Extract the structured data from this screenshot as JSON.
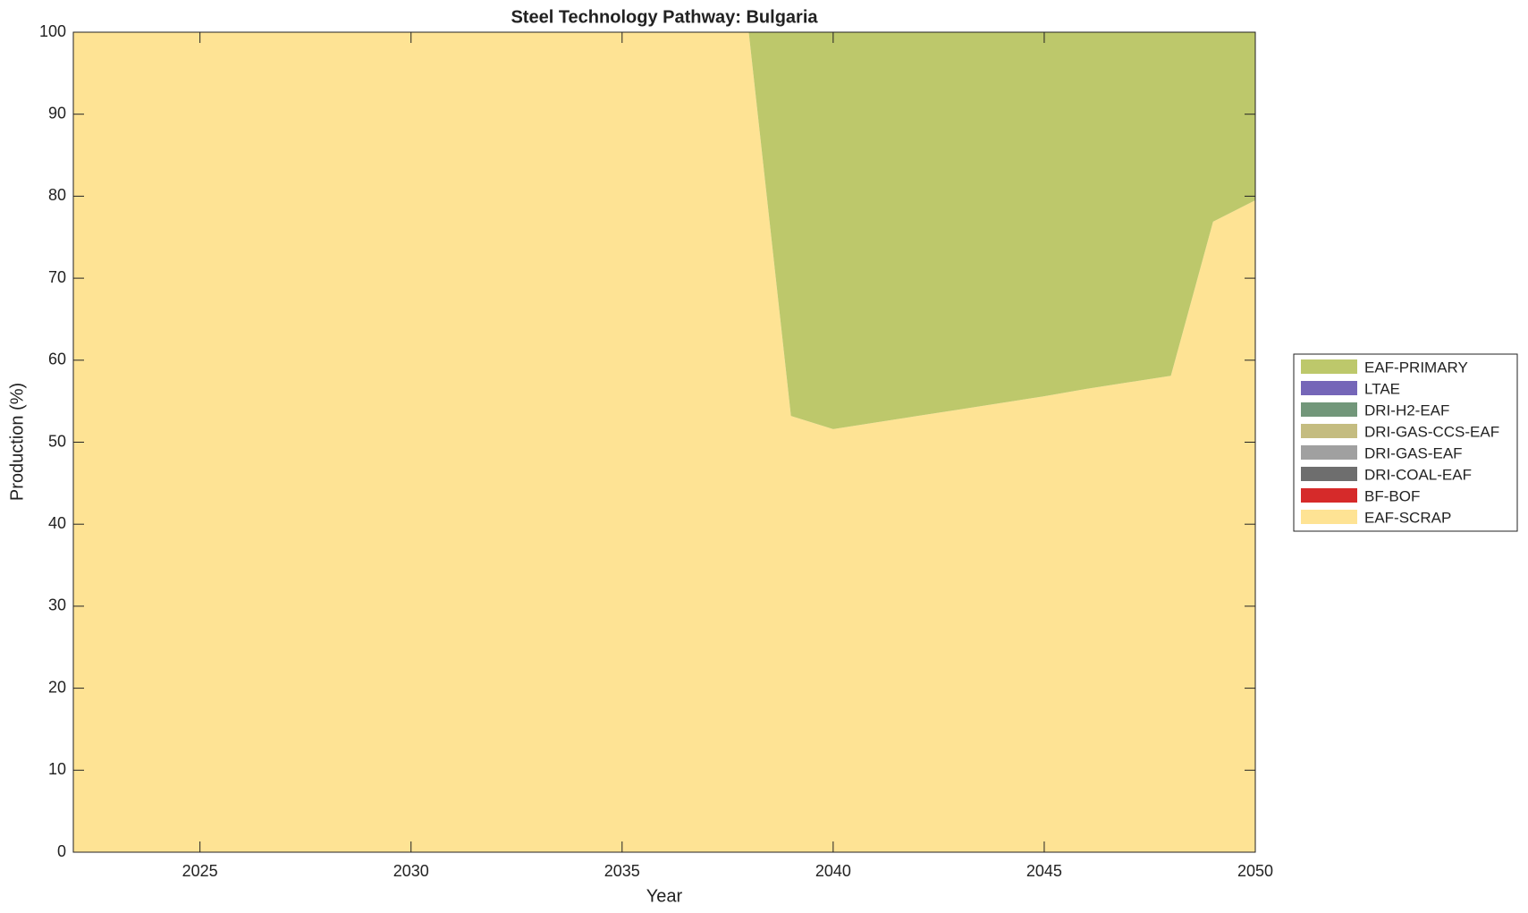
{
  "chart_data": {
    "type": "stacked-area",
    "title": "Steel Technology Pathway: Bulgaria",
    "x_label": "Year",
    "y_label": "Production (%)",
    "x": [
      2022,
      2023,
      2024,
      2025,
      2026,
      2027,
      2028,
      2029,
      2030,
      2031,
      2032,
      2033,
      2034,
      2035,
      2036,
      2037,
      2038,
      2039,
      2040,
      2041,
      2042,
      2043,
      2044,
      2045,
      2046,
      2047,
      2048,
      2049,
      2050
    ],
    "series": [
      {
        "name": "EAF-PRIMARY",
        "color": "#bdc86b",
        "values": [
          0,
          0,
          0,
          0,
          0,
          0,
          0,
          0,
          0,
          0,
          0,
          0,
          0,
          0,
          0,
          0,
          0,
          46.8,
          48.4,
          47.6,
          46.8,
          46.0,
          45.2,
          44.4,
          43.5,
          42.7,
          41.9,
          23.1,
          20.5
        ]
      },
      {
        "name": "LTAE",
        "color": "#7566b8",
        "values": [
          0,
          0,
          0,
          0,
          0,
          0,
          0,
          0,
          0,
          0,
          0,
          0,
          0,
          0,
          0,
          0,
          0,
          0,
          0,
          0,
          0,
          0,
          0,
          0,
          0,
          0,
          0,
          0,
          0
        ]
      },
      {
        "name": "DRI-H2-EAF",
        "color": "#72977a",
        "values": [
          0,
          0,
          0,
          0,
          0,
          0,
          0,
          0,
          0,
          0,
          0,
          0,
          0,
          0,
          0,
          0,
          0,
          0,
          0,
          0,
          0,
          0,
          0,
          0,
          0,
          0,
          0,
          0,
          0
        ]
      },
      {
        "name": "DRI-GAS-CCS-EAF",
        "color": "#c4bc80",
        "values": [
          0,
          0,
          0,
          0,
          0,
          0,
          0,
          0,
          0,
          0,
          0,
          0,
          0,
          0,
          0,
          0,
          0,
          0,
          0,
          0,
          0,
          0,
          0,
          0,
          0,
          0,
          0,
          0,
          0
        ]
      },
      {
        "name": "DRI-GAS-EAF",
        "color": "#a0a0a0",
        "values": [
          0,
          0,
          0,
          0,
          0,
          0,
          0,
          0,
          0,
          0,
          0,
          0,
          0,
          0,
          0,
          0,
          0,
          0,
          0,
          0,
          0,
          0,
          0,
          0,
          0,
          0,
          0,
          0,
          0
        ]
      },
      {
        "name": "DRI-COAL-EAF",
        "color": "#6e6e6e",
        "values": [
          0,
          0,
          0,
          0,
          0,
          0,
          0,
          0,
          0,
          0,
          0,
          0,
          0,
          0,
          0,
          0,
          0,
          0,
          0,
          0,
          0,
          0,
          0,
          0,
          0,
          0,
          0,
          0,
          0
        ]
      },
      {
        "name": "BF-BOF",
        "color": "#d62a2a",
        "values": [
          0,
          0,
          0,
          0,
          0,
          0,
          0,
          0,
          0,
          0,
          0,
          0,
          0,
          0,
          0,
          0,
          0,
          0,
          0,
          0,
          0,
          0,
          0,
          0,
          0,
          0,
          0,
          0,
          0
        ]
      },
      {
        "name": "EAF-SCRAP",
        "color": "#fee394",
        "values": [
          100,
          100,
          100,
          100,
          100,
          100,
          100,
          100,
          100,
          100,
          100,
          100,
          100,
          100,
          100,
          100,
          100,
          53.2,
          51.6,
          52.4,
          53.2,
          54.0,
          54.8,
          55.6,
          56.5,
          57.3,
          58.1,
          76.9,
          79.5
        ]
      }
    ],
    "xlim": [
      2022,
      2050
    ],
    "xticks": [
      2025,
      2030,
      2035,
      2040,
      2045,
      2050
    ],
    "ylim": [
      0,
      100
    ],
    "yticks": [
      0,
      10,
      20,
      30,
      40,
      50,
      60,
      70,
      80,
      90,
      100
    ],
    "legend": "right"
  }
}
